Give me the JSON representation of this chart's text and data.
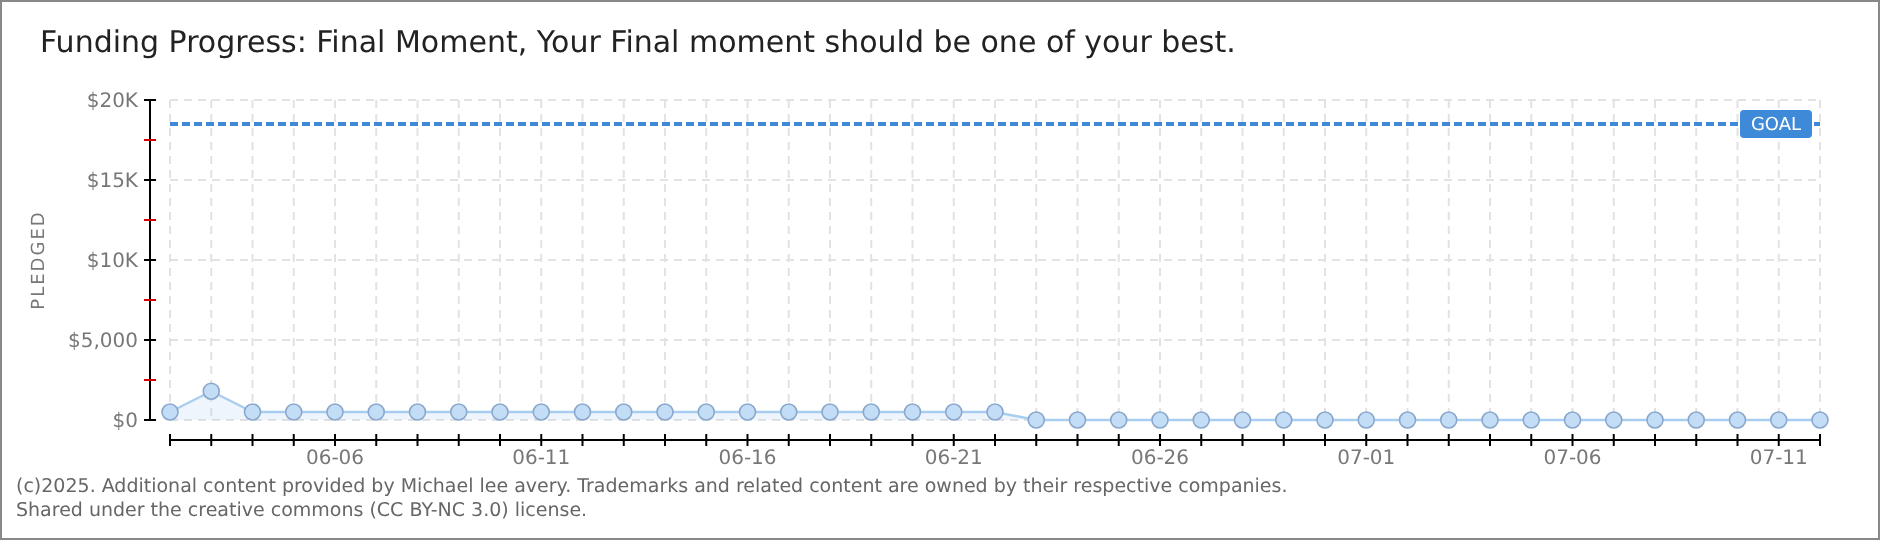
{
  "chart_data": {
    "type": "area",
    "title": "Funding Progress: Final Moment, Your Final moment should be one of your best.",
    "ylabel": "PLEDGED",
    "x": [
      "--06-02",
      "--06-03",
      "--06-04",
      "--06-05",
      "--06-06",
      "--06-07",
      "--06-08",
      "--06-09",
      "--06-10",
      "--06-11",
      "--06-12",
      "--06-13",
      "--06-14",
      "--06-15",
      "--06-16",
      "--06-17",
      "--06-18",
      "--06-19",
      "--06-20",
      "--06-21",
      "--06-22",
      "--06-23",
      "--06-24",
      "--06-25",
      "--06-26",
      "--06-27",
      "--06-28",
      "--06-29",
      "--06-30",
      "--07-01",
      "--07-02",
      "--07-03",
      "--07-04",
      "--07-05",
      "--07-06",
      "--07-07",
      "--07-08",
      "--07-09",
      "--07-10",
      "--07-11",
      "--07-12"
    ],
    "series": [
      {
        "color": "#a8cdf0",
        "values": [
          500,
          1800,
          500,
          500,
          500,
          500,
          500,
          500,
          500,
          500,
          500,
          500,
          500,
          500,
          500,
          500,
          500,
          500,
          500,
          500,
          500,
          0,
          0,
          0,
          0,
          0,
          0,
          0,
          0,
          0,
          0,
          0,
          0,
          0,
          0,
          0,
          0,
          0,
          0,
          0,
          0
        ]
      }
    ],
    "marker": "circle",
    "grid": true,
    "xlim": [
      "--06-02",
      "--07-12"
    ],
    "xticks": [
      {
        "value": "--06-02",
        "label": null
      },
      {
        "value": "--06-03",
        "label": null
      },
      {
        "value": "--06-04",
        "label": null
      },
      {
        "value": "--06-05",
        "label": null
      },
      {
        "value": "--06-06",
        "label": "06-06"
      },
      {
        "value": "--06-07",
        "label": null
      },
      {
        "value": "--06-08",
        "label": null
      },
      {
        "value": "--06-09",
        "label": null
      },
      {
        "value": "--06-10",
        "label": null
      },
      {
        "value": "--06-11",
        "label": "06-11"
      },
      {
        "value": "--06-12",
        "label": null
      },
      {
        "value": "--06-13",
        "label": null
      },
      {
        "value": "--06-14",
        "label": null
      },
      {
        "value": "--06-15",
        "label": null
      },
      {
        "value": "--06-16",
        "label": "06-16"
      },
      {
        "value": "--06-17",
        "label": null
      },
      {
        "value": "--06-18",
        "label": null
      },
      {
        "value": "--06-19",
        "label": null
      },
      {
        "value": "--06-20",
        "label": null
      },
      {
        "value": "--06-21",
        "label": "06-21"
      },
      {
        "value": "--06-22",
        "label": null
      },
      {
        "value": "--06-23",
        "label": null
      },
      {
        "value": "--06-24",
        "label": null
      },
      {
        "value": "--06-25",
        "label": null
      },
      {
        "value": "--06-26",
        "label": "06-26"
      },
      {
        "value": "--06-27",
        "label": null
      },
      {
        "value": "--06-28",
        "label": null
      },
      {
        "value": "--06-29",
        "label": null
      },
      {
        "value": "--06-30",
        "label": null
      },
      {
        "value": "--07-01",
        "label": "07-01"
      },
      {
        "value": "--07-02",
        "label": null
      },
      {
        "value": "--07-03",
        "label": null
      },
      {
        "value": "--07-04",
        "label": null
      },
      {
        "value": "--07-05",
        "label": null
      },
      {
        "value": "--07-06",
        "label": "07-06"
      },
      {
        "value": "--07-07",
        "label": null
      },
      {
        "value": "--07-08",
        "label": null
      },
      {
        "value": "--07-09",
        "label": null
      },
      {
        "value": "--07-10",
        "label": null
      },
      {
        "value": "--07-11",
        "label": "07-11"
      },
      {
        "value": "--07-12",
        "label": null
      }
    ],
    "ylim": [
      0,
      20000
    ],
    "yticks": [
      {
        "value": 0,
        "label": "$0"
      },
      {
        "value": 2500,
        "label": null
      },
      {
        "value": 5000,
        "label": "$5,000"
      },
      {
        "value": 7500,
        "label": null
      },
      {
        "value": 10000,
        "label": "$10K"
      },
      {
        "value": 12500,
        "label": null
      },
      {
        "value": 15000,
        "label": "$15K"
      },
      {
        "value": 17500,
        "label": null
      },
      {
        "value": 20000,
        "label": "$20K"
      }
    ],
    "ref_lines": [
      {
        "axis": "y",
        "value": 18500,
        "label": "GOAL",
        "color": "#3f8ad8",
        "line_style": "dashed"
      }
    ],
    "annotations": [
      "(c)2025. Additional content provided by Michael lee avery. Trademarks and related content are owned by their respective companies.",
      "Shared under the creative commons (CC BY-NC 3.0) license."
    ]
  }
}
